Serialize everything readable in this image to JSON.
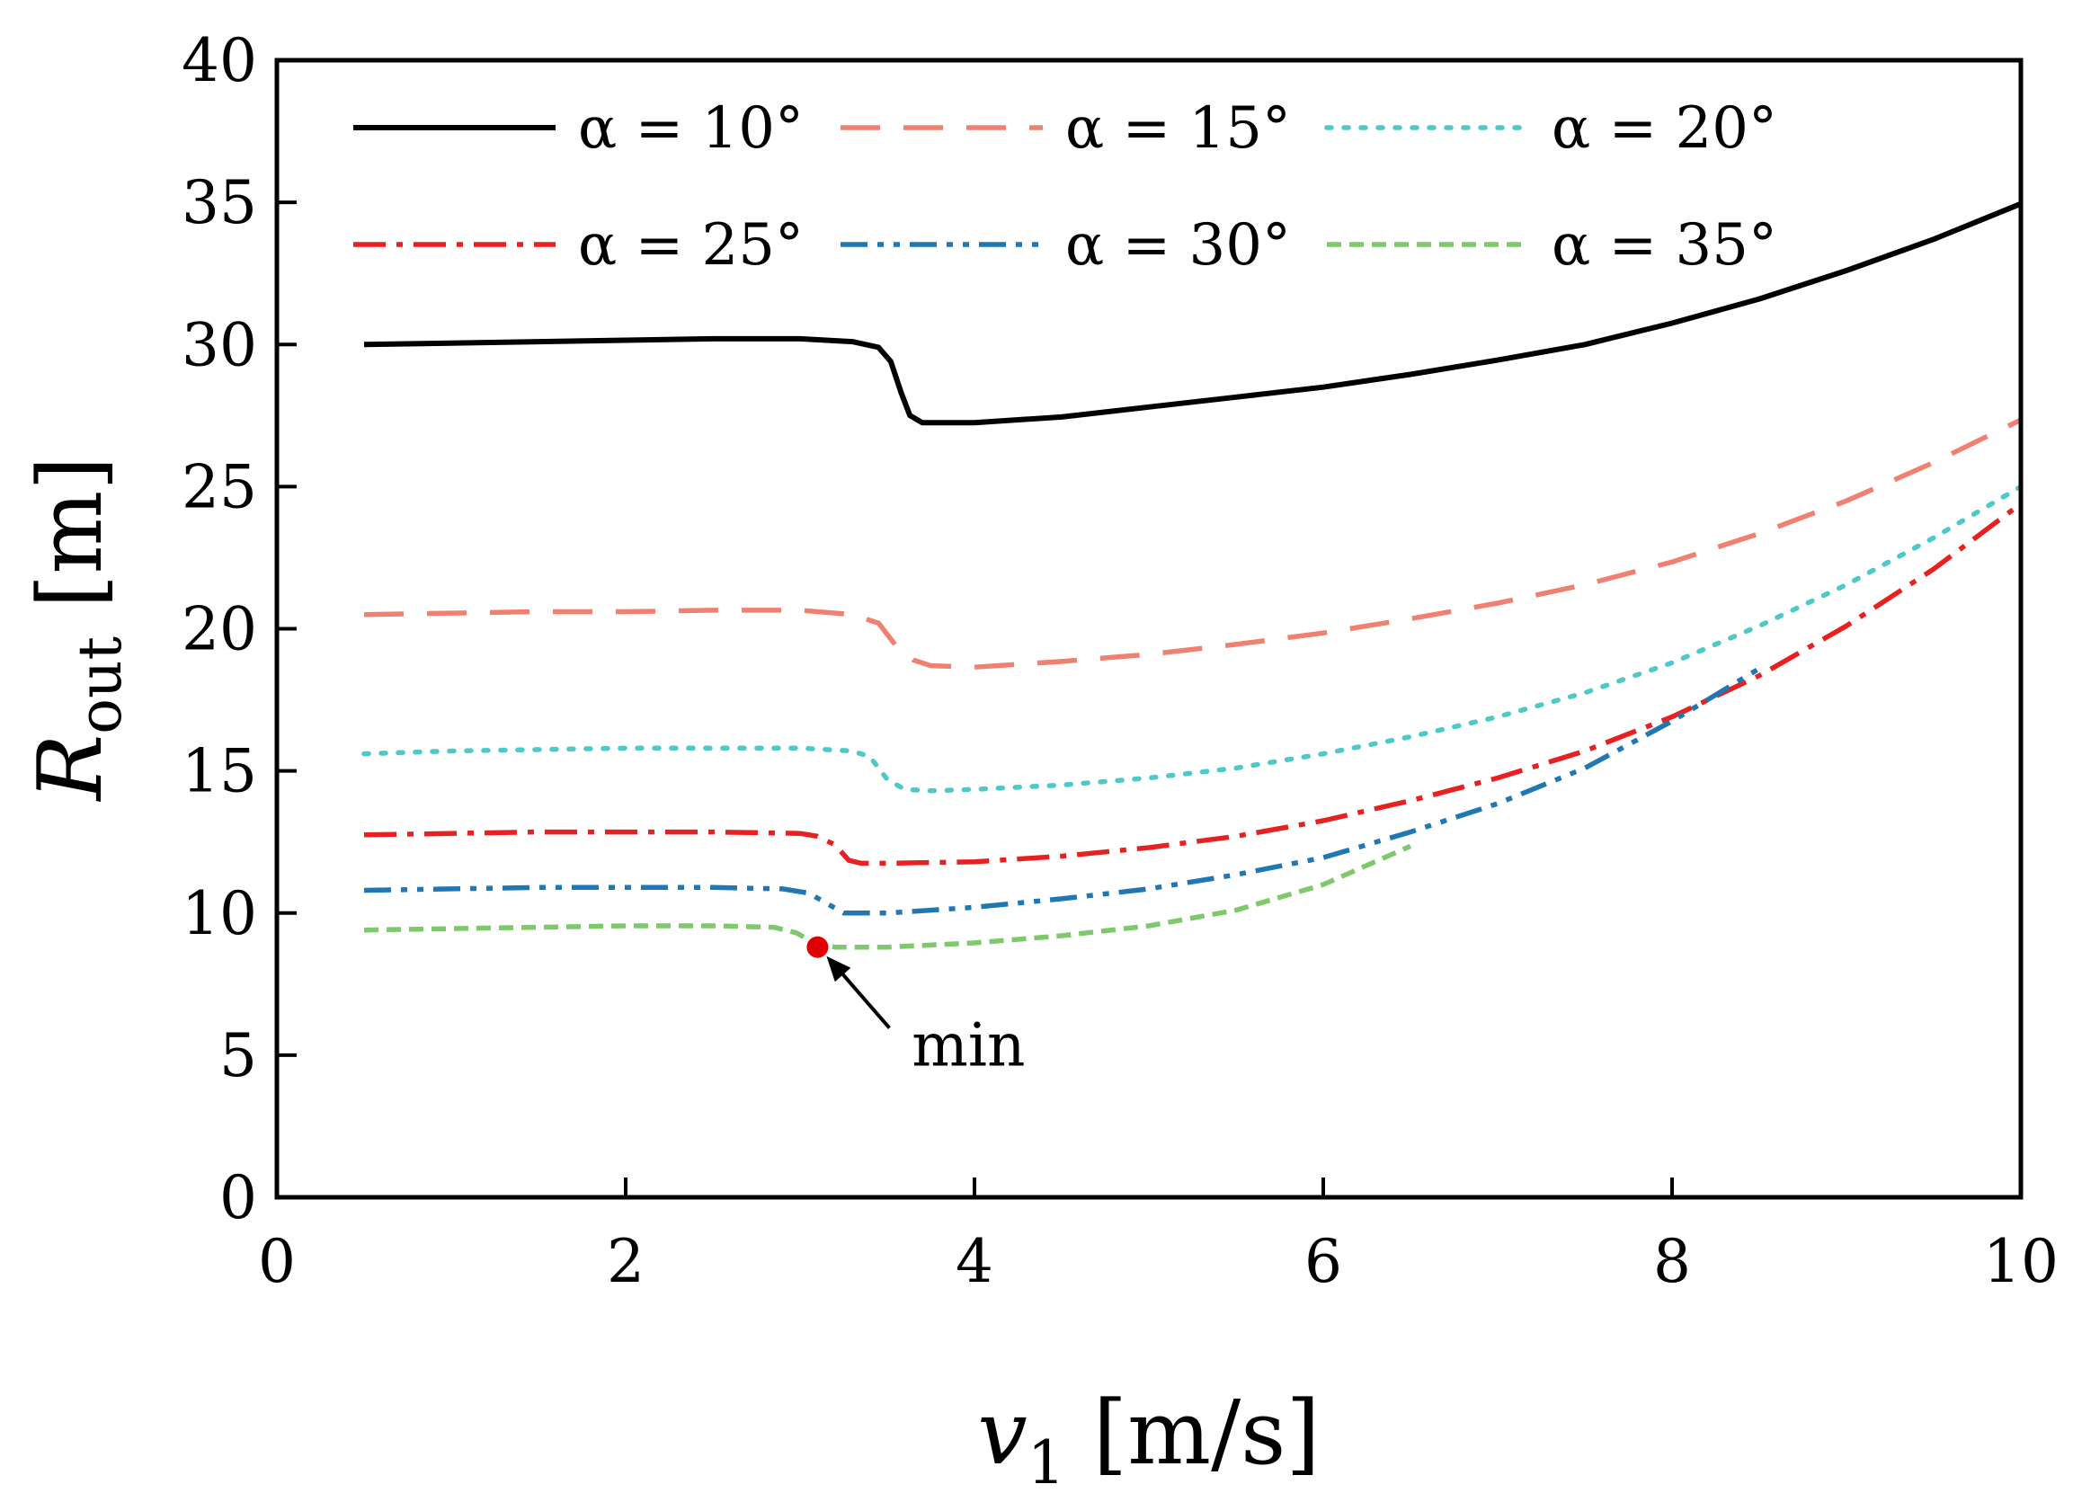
{
  "chart_data": {
    "type": "line",
    "title": "",
    "xlabel": "v",
    "xlabel_sub": "1",
    "xlabel_unit": " [m/s]",
    "ylabel": "R",
    "ylabel_sub": "out",
    "ylabel_unit": " [m]",
    "xlim": [
      0,
      10
    ],
    "ylim": [
      0,
      40
    ],
    "xticks": [
      0,
      2,
      4,
      6,
      8,
      10
    ],
    "yticks": [
      0,
      5,
      10,
      15,
      20,
      25,
      30,
      35,
      40
    ],
    "grid": false,
    "legend_position": "top",
    "series": [
      {
        "name": "α = 10°",
        "color": "#000000",
        "dash": "solid",
        "x": [
          0.5,
          1.0,
          1.5,
          2.0,
          2.5,
          3.0,
          3.3,
          3.45,
          3.52,
          3.58,
          3.63,
          3.7,
          4.0,
          4.5,
          5.0,
          5.5,
          6.0,
          6.5,
          7.0,
          7.5,
          8.0,
          8.5,
          9.0,
          9.5,
          10.0
        ],
        "y": [
          30.0,
          30.05,
          30.1,
          30.15,
          30.2,
          30.2,
          30.1,
          29.9,
          29.4,
          28.3,
          27.5,
          27.25,
          27.25,
          27.45,
          27.8,
          28.15,
          28.5,
          28.95,
          29.45,
          30.0,
          30.75,
          31.6,
          32.6,
          33.7,
          34.95
        ]
      },
      {
        "name": "α = 15°",
        "color": "#f08070",
        "dash": "long-dash",
        "x": [
          0.5,
          1.0,
          1.5,
          2.0,
          2.5,
          3.0,
          3.3,
          3.45,
          3.55,
          3.65,
          3.75,
          4.0,
          4.5,
          5.0,
          5.5,
          6.0,
          6.5,
          7.0,
          7.5,
          8.0,
          8.5,
          9.0,
          9.5,
          10.0
        ],
        "y": [
          20.5,
          20.55,
          20.6,
          20.6,
          20.65,
          20.65,
          20.5,
          20.2,
          19.4,
          18.9,
          18.7,
          18.65,
          18.85,
          19.1,
          19.45,
          19.85,
          20.35,
          20.9,
          21.55,
          22.35,
          23.35,
          24.5,
          25.85,
          27.35
        ]
      },
      {
        "name": "α = 20°",
        "color": "#4fc8c8",
        "dash": "dot",
        "x": [
          0.5,
          1.0,
          1.5,
          2.0,
          2.5,
          3.0,
          3.3,
          3.4,
          3.5,
          3.6,
          3.75,
          4.0,
          4.5,
          5.0,
          5.5,
          6.0,
          6.5,
          7.0,
          7.5,
          8.0,
          8.5,
          9.0,
          9.5,
          10.0
        ],
        "y": [
          15.6,
          15.7,
          15.75,
          15.8,
          15.8,
          15.8,
          15.7,
          15.5,
          14.7,
          14.35,
          14.3,
          14.35,
          14.5,
          14.75,
          15.1,
          15.6,
          16.2,
          16.9,
          17.75,
          18.8,
          20.1,
          21.55,
          23.2,
          25.0
        ]
      },
      {
        "name": "α = 25°",
        "color": "#e82020",
        "dash": "dash-dot",
        "x": [
          0.5,
          1.0,
          1.5,
          2.0,
          2.5,
          3.0,
          3.1,
          3.2,
          3.28,
          3.35,
          3.5,
          4.0,
          4.5,
          5.0,
          5.5,
          6.0,
          6.5,
          7.0,
          7.5,
          8.0,
          8.5,
          9.0,
          9.5,
          10.0
        ],
        "y": [
          12.75,
          12.8,
          12.85,
          12.85,
          12.85,
          12.8,
          12.7,
          12.4,
          11.85,
          11.75,
          11.75,
          11.8,
          12.0,
          12.3,
          12.7,
          13.25,
          13.95,
          14.75,
          15.7,
          16.9,
          18.35,
          20.1,
          22.1,
          24.4
        ]
      },
      {
        "name": "α = 30°",
        "color": "#1f77b4",
        "dash": "dash-dot-dot",
        "x": [
          0.5,
          1.0,
          1.5,
          2.0,
          2.5,
          2.9,
          3.05,
          3.15,
          3.25,
          3.5,
          4.0,
          4.5,
          5.0,
          5.5,
          6.0,
          6.5,
          7.0,
          7.5,
          8.0,
          8.5
        ],
        "y": [
          10.8,
          10.85,
          10.9,
          10.9,
          10.9,
          10.85,
          10.7,
          10.35,
          10.0,
          10.0,
          10.2,
          10.5,
          10.85,
          11.35,
          11.95,
          12.85,
          13.85,
          15.1,
          16.75,
          18.6
        ]
      },
      {
        "name": "α = 35°",
        "color": "#7dc96b",
        "dash": "short-dash",
        "x": [
          0.5,
          1.0,
          1.5,
          2.0,
          2.5,
          2.85,
          2.98,
          3.08,
          3.2,
          3.5,
          4.0,
          4.5,
          5.0,
          5.5,
          6.0,
          6.5
        ],
        "y": [
          9.4,
          9.45,
          9.5,
          9.55,
          9.55,
          9.5,
          9.3,
          8.95,
          8.8,
          8.8,
          8.95,
          9.2,
          9.55,
          10.1,
          11.0,
          12.35
        ]
      }
    ],
    "annotations": [
      {
        "text": "min",
        "point_x": 3.1,
        "point_y": 8.8,
        "marker_color": "#e00000"
      }
    ]
  }
}
